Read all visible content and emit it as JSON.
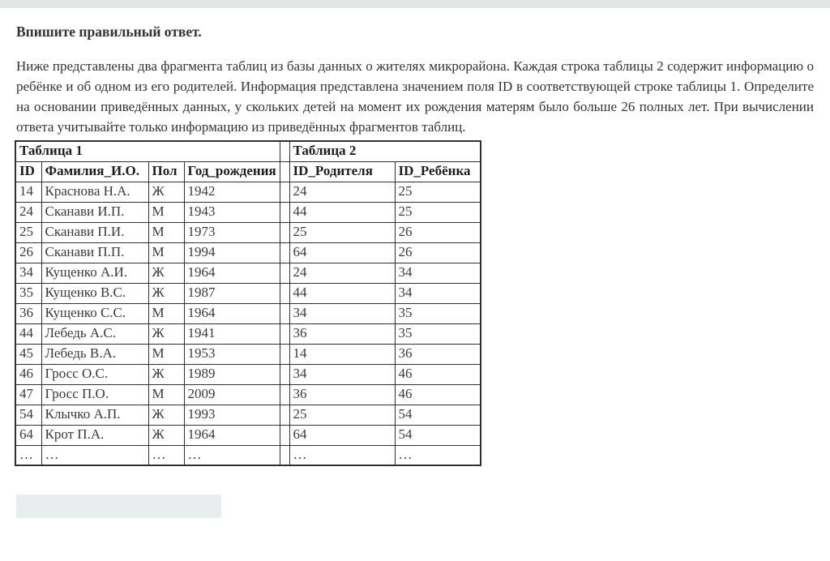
{
  "page": {
    "title": "Впишите правильный ответ.",
    "question": "Ниже представлены два фрагмента таблиц из базы данных о жителях микрорайона. Каждая строка таблицы 2 содержит информацию о ребёнке и об одном из его родителей. Информация представлена значением поля ID в соответствующей строке таблицы 1. Определите на основании приведённых данных, у скольких детей на момент их рождения матерям было больше 26 полных лет. При вычислении ответа учитывайте только информацию из приведённых фрагментов таблиц."
  },
  "table1": {
    "title": "Таблица 1",
    "headers": [
      "ID",
      "Фамилия_И.О.",
      "Пол",
      "Год_рождения"
    ],
    "rows": [
      [
        "14",
        "Краснова Н.А.",
        "Ж",
        "1942"
      ],
      [
        "24",
        "Сканави И.П.",
        "М",
        "1943"
      ],
      [
        "25",
        "Сканави П.И.",
        "М",
        "1973"
      ],
      [
        "26",
        "Сканави П.П.",
        "М",
        "1994"
      ],
      [
        "34",
        "Кущенко А.И.",
        "Ж",
        "1964"
      ],
      [
        "35",
        "Кущенко В.С.",
        "Ж",
        "1987"
      ],
      [
        "36",
        "Кущенко С.С.",
        "М",
        "1964"
      ],
      [
        "44",
        "Лебедь А.С.",
        "Ж",
        "1941"
      ],
      [
        "45",
        "Лебедь В.А.",
        "М",
        "1953"
      ],
      [
        "46",
        "Гросс О.С.",
        "Ж",
        "1989"
      ],
      [
        "47",
        "Гросс П.О.",
        "М",
        "2009"
      ],
      [
        "54",
        "Клычко А.П.",
        "Ж",
        "1993"
      ],
      [
        "64",
        "Крот П.А.",
        "Ж",
        "1964"
      ],
      [
        "…",
        "…",
        "…",
        "…"
      ]
    ]
  },
  "table2": {
    "title": "Таблица 2",
    "headers": [
      "ID_Родителя",
      "ID_Ребёнка"
    ],
    "rows": [
      [
        "24",
        "25"
      ],
      [
        "44",
        "25"
      ],
      [
        "25",
        "26"
      ],
      [
        "64",
        "26"
      ],
      [
        "24",
        "34"
      ],
      [
        "44",
        "34"
      ],
      [
        "34",
        "35"
      ],
      [
        "36",
        "35"
      ],
      [
        "14",
        "36"
      ],
      [
        "34",
        "46"
      ],
      [
        "36",
        "46"
      ],
      [
        "25",
        "54"
      ],
      [
        "64",
        "54"
      ],
      [
        "…",
        "…"
      ]
    ]
  },
  "answer_input": {
    "value": "",
    "placeholder": ""
  },
  "colors": {
    "top_bar": "#e1e5e5",
    "input_bg": "#e9eded",
    "border": "#2f2f2f",
    "text": "#333333"
  }
}
